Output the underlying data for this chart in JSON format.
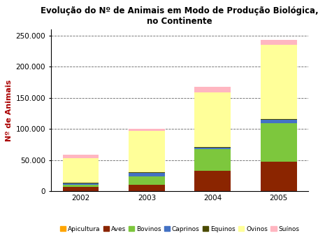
{
  "title": "Evolução do Nº de Animais em Modo de Produção Biológica,\nno Continente",
  "ylabel": "Nº de Animais",
  "years": [
    "2002",
    "2003",
    "2004",
    "2005"
  ],
  "categories": [
    "Apicultura",
    "Aves",
    "Bovinos",
    "Caprinos",
    "Equinos",
    "Ovinos",
    "Suínos"
  ],
  "colors": [
    "#FFA500",
    "#8B2500",
    "#7DC73D",
    "#4472C4",
    "#4B4B00",
    "#FFFF99",
    "#FFB6C1"
  ],
  "data": {
    "Apicultura": [
      0,
      0,
      0,
      500
    ],
    "Aves": [
      7000,
      10000,
      33000,
      47000
    ],
    "Bovinos": [
      3000,
      14000,
      35000,
      62000
    ],
    "Caprinos": [
      2000,
      5000,
      2000,
      5000
    ],
    "Equinos": [
      1000,
      1000,
      1000,
      1000
    ],
    "Ovinos": [
      40000,
      67000,
      88000,
      120000
    ],
    "Suínos": [
      5000,
      3000,
      9000,
      8000
    ]
  },
  "ylim": [
    0,
    260000
  ],
  "yticks": [
    0,
    50000,
    100000,
    150000,
    200000,
    250000
  ],
  "ytick_labels": [
    "0",
    "50.000",
    "100.000",
    "150.000",
    "200.000",
    "250.000"
  ],
  "title_fontsize": 8.5,
  "ylabel_fontsize": 8,
  "ylabel_color": "#AA0000",
  "tick_fontsize": 7.5,
  "background_color": "#FFFFFF",
  "grid_color": "#666666",
  "bar_width": 0.55,
  "legend_fontsize": 6.5
}
